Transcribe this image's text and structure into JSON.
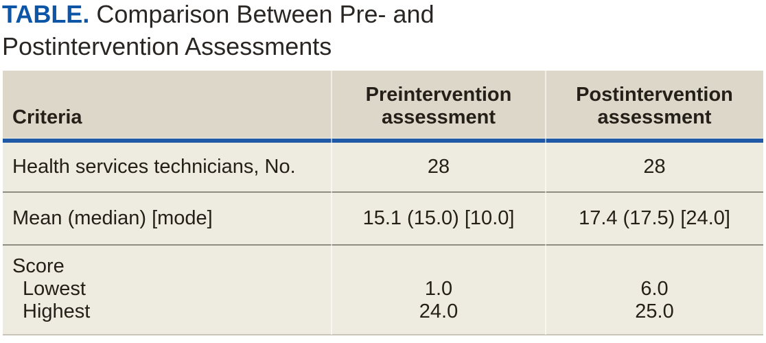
{
  "title": {
    "label": "TABLE.",
    "text": "Comparison Between Pre- and Postintervention Assessments"
  },
  "table": {
    "header": {
      "criteria": "Criteria",
      "pre": "Preintervention assessment",
      "post": "Postintervention assessment"
    },
    "rows": [
      {
        "criteria": "Health services technicians, No.",
        "pre": "28",
        "post": "28"
      },
      {
        "criteria": "Mean (median) [mode]",
        "pre": "15.1 (15.0) [10.0]",
        "post": "17.4 (17.5) [24.0]"
      }
    ],
    "score": {
      "label": "Score",
      "subrows": [
        {
          "label": "Lowest",
          "pre": "1.0",
          "post": "6.0"
        },
        {
          "label": "Highest",
          "pre": "24.0",
          "post": "25.0"
        }
      ]
    }
  },
  "colors": {
    "accent_blue": "#0d55a6",
    "rule_blue": "#205aa7",
    "header_bg": "#dcd7c8",
    "body_bg": "#eeebe0",
    "separator_gray": "#8d8c82",
    "text": "#242019"
  }
}
